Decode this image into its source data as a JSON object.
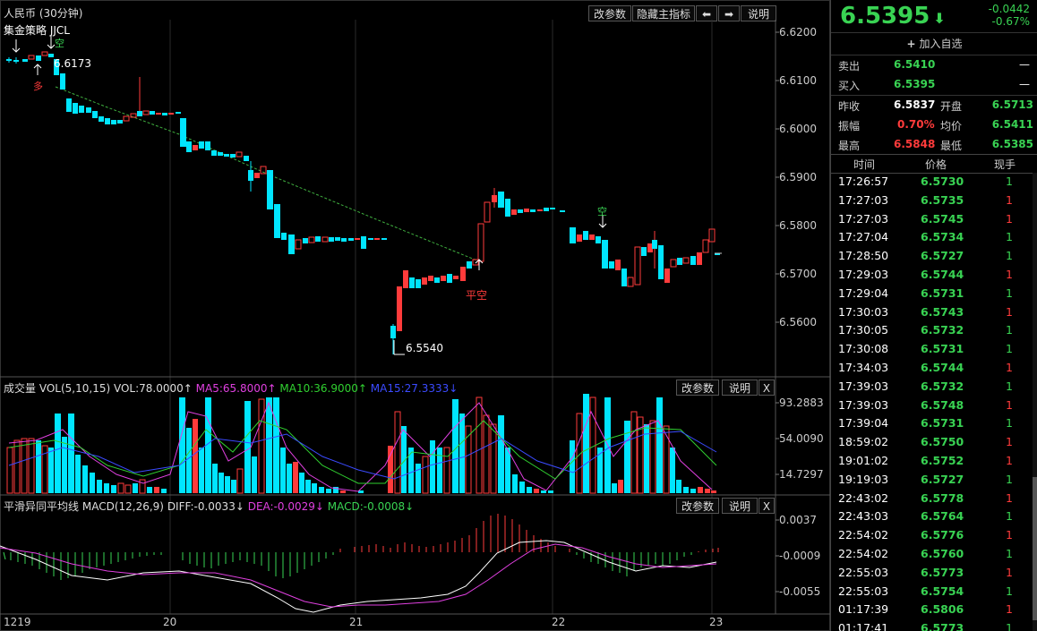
{
  "header": {
    "symbol": "人民币 (30分钟)",
    "strategy": "集金策略 JJCL",
    "buttons": [
      "改参数",
      "隐藏主指标",
      "⬅",
      "➡",
      "说明"
    ]
  },
  "price_axis": [
    "6.6200",
    "6.6100",
    "6.6000",
    "6.5900",
    "6.5800",
    "6.5700",
    "6.5600"
  ],
  "annotations": {
    "high_label": "6.6173",
    "low_label": "6.5540",
    "signal_long": "多",
    "signal_short": "空",
    "signal_close_short": "平空",
    "signal_short2": "空"
  },
  "volume_panel": {
    "title": "成交量",
    "params": "VOL(5,10,15)",
    "vol": "VOL:78.0000↑",
    "ma5": "MA5:65.8000↑",
    "ma10": "MA10:36.9000↑",
    "ma15": "MA15:27.3333↓",
    "buttons": [
      "改参数",
      "说明",
      "X"
    ],
    "axis": [
      "93.2883",
      "54.0090",
      "14.7297"
    ]
  },
  "macd_panel": {
    "title": "平滑异同平均线",
    "params": "MACD(12,26,9)",
    "diff": "DIFF:-0.0033↓",
    "dea": "DEA:-0.0029↓",
    "macd": "MACD:-0.0008↓",
    "buttons": [
      "改参数",
      "说明",
      "X"
    ],
    "axis": [
      "0.0037",
      "-0.0009",
      "-0.0055"
    ]
  },
  "x_axis": [
    "1219",
    "20",
    "21",
    "22",
    "23"
  ],
  "quote": {
    "price": "6.5395",
    "arrow": "⬇",
    "change": "-0.0442",
    "change_pct": "-0.67%",
    "add_watch": "加入自选",
    "sell_label": "卖出",
    "sell_value": "6.5410",
    "sell_qty": "—",
    "buy_label": "买入",
    "buy_value": "6.5395",
    "buy_qty": "—",
    "prev_close_label": "昨收",
    "prev_close": "6.5837",
    "open_label": "开盘",
    "open": "6.5713",
    "amplitude_label": "振幅",
    "amplitude": "0.70%",
    "avg_label": "均价",
    "avg": "6.5411",
    "high_label": "最高",
    "high": "6.5848",
    "low_label": "最低",
    "low": "6.5385"
  },
  "ticks_header": {
    "time": "时间",
    "price": "价格",
    "qty": "现手"
  },
  "ticks": [
    {
      "time": "17:26:57",
      "price": "6.5730",
      "qty": "1",
      "dir": "g"
    },
    {
      "time": "17:27:03",
      "price": "6.5735",
      "qty": "1",
      "dir": "r"
    },
    {
      "time": "17:27:03",
      "price": "6.5745",
      "qty": "1",
      "dir": "r"
    },
    {
      "time": "17:27:04",
      "price": "6.5734",
      "qty": "1",
      "dir": "g"
    },
    {
      "time": "17:28:50",
      "price": "6.5727",
      "qty": "1",
      "dir": "g"
    },
    {
      "time": "17:29:03",
      "price": "6.5744",
      "qty": "1",
      "dir": "r"
    },
    {
      "time": "17:29:04",
      "price": "6.5731",
      "qty": "1",
      "dir": "g"
    },
    {
      "time": "17:30:03",
      "price": "6.5743",
      "qty": "1",
      "dir": "r"
    },
    {
      "time": "17:30:05",
      "price": "6.5732",
      "qty": "1",
      "dir": "g"
    },
    {
      "time": "17:30:08",
      "price": "6.5731",
      "qty": "1",
      "dir": "g"
    },
    {
      "time": "17:34:03",
      "price": "6.5744",
      "qty": "1",
      "dir": "r"
    },
    {
      "time": "17:39:03",
      "price": "6.5732",
      "qty": "1",
      "dir": "g"
    },
    {
      "time": "17:39:03",
      "price": "6.5748",
      "qty": "1",
      "dir": "r"
    },
    {
      "time": "17:39:04",
      "price": "6.5731",
      "qty": "1",
      "dir": "g"
    },
    {
      "time": "18:59:02",
      "price": "6.5750",
      "qty": "1",
      "dir": "r"
    },
    {
      "time": "19:01:02",
      "price": "6.5752",
      "qty": "1",
      "dir": "r"
    },
    {
      "time": "19:19:03",
      "price": "6.5727",
      "qty": "1",
      "dir": "g"
    },
    {
      "time": "22:43:02",
      "price": "6.5778",
      "qty": "1",
      "dir": "r"
    },
    {
      "time": "22:43:03",
      "price": "6.5764",
      "qty": "1",
      "dir": "g"
    },
    {
      "time": "22:54:02",
      "price": "6.5776",
      "qty": "1",
      "dir": "r"
    },
    {
      "time": "22:54:02",
      "price": "6.5760",
      "qty": "1",
      "dir": "g"
    },
    {
      "time": "22:55:03",
      "price": "6.5773",
      "qty": "1",
      "dir": "r"
    },
    {
      "time": "22:55:03",
      "price": "6.5754",
      "qty": "1",
      "dir": "g"
    },
    {
      "time": "01:17:39",
      "price": "6.5806",
      "qty": "1",
      "dir": "r"
    },
    {
      "time": "01:17:41",
      "price": "6.5773",
      "qty": "1",
      "dir": "g"
    }
  ]
}
